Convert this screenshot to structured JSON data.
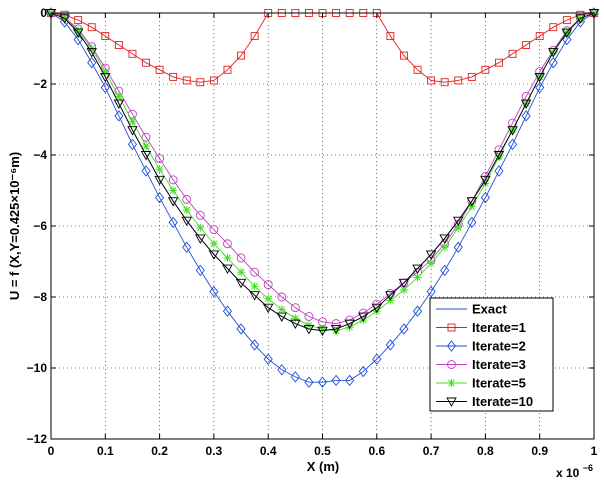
{
  "chart_data": {
    "type": "line",
    "xlabel": "X (m)",
    "ylabel": "U = f (X,Y=0.425×10⁻⁶m)",
    "x_multiplier_label": "x 10",
    "x_multiplier_exp": "−6",
    "xlim": [
      0,
      1
    ],
    "ylim": [
      -12,
      0
    ],
    "x_ticks": [
      0,
      0.1,
      0.2,
      0.3,
      0.4,
      0.5,
      0.6,
      0.7,
      0.8,
      0.9,
      1
    ],
    "x_tick_labels": [
      "0",
      "0.1",
      "0.2",
      "0.3",
      "0.4",
      "0.5",
      "0.6",
      "0.7",
      "0.8",
      "0.9",
      "1"
    ],
    "y_ticks": [
      0,
      -2,
      -4,
      -6,
      -8,
      -10,
      -12
    ],
    "y_tick_labels": [
      "0",
      "−2",
      "−4",
      "−6",
      "−8",
      "−10",
      "−12"
    ],
    "grid": true,
    "legend_position": "bottom-right",
    "x": [
      0,
      0.025,
      0.05,
      0.075,
      0.1,
      0.125,
      0.15,
      0.175,
      0.2,
      0.225,
      0.25,
      0.275,
      0.3,
      0.325,
      0.35,
      0.375,
      0.4,
      0.425,
      0.45,
      0.475,
      0.5,
      0.525,
      0.55,
      0.575,
      0.6,
      0.625,
      0.65,
      0.675,
      0.7,
      0.725,
      0.75,
      0.775,
      0.8,
      0.825,
      0.85,
      0.875,
      0.9,
      0.925,
      0.95,
      0.975,
      1
    ],
    "series": [
      {
        "name": "Exact",
        "color": "#1f4fd8",
        "marker": "none",
        "values": [
          0,
          -0.15,
          -0.55,
          -1.1,
          -1.8,
          -2.55,
          -3.3,
          -4.0,
          -4.7,
          -5.3,
          -5.85,
          -6.35,
          -6.8,
          -7.2,
          -7.6,
          -7.95,
          -8.3,
          -8.55,
          -8.75,
          -8.9,
          -8.95,
          -8.9,
          -8.75,
          -8.55,
          -8.3,
          -7.95,
          -7.6,
          -7.2,
          -6.8,
          -6.35,
          -5.85,
          -5.3,
          -4.7,
          -4.0,
          -3.3,
          -2.55,
          -1.8,
          -1.1,
          -0.55,
          -0.15,
          0
        ]
      },
      {
        "name": "Iterate=1",
        "color": "#e02020",
        "marker": "square",
        "values": [
          0,
          -0.05,
          -0.2,
          -0.4,
          -0.65,
          -0.9,
          -1.15,
          -1.4,
          -1.6,
          -1.8,
          -1.9,
          -1.95,
          -1.9,
          -1.6,
          -1.2,
          -0.65,
          0,
          0,
          0,
          0,
          0,
          0,
          0,
          0,
          0,
          -0.65,
          -1.2,
          -1.6,
          -1.9,
          -1.95,
          -1.9,
          -1.8,
          -1.6,
          -1.4,
          -1.15,
          -0.9,
          -0.65,
          -0.4,
          -0.2,
          -0.05,
          0
        ]
      },
      {
        "name": "Iterate=2",
        "color": "#1f4fd8",
        "marker": "diamond",
        "values": [
          0,
          -0.25,
          -0.75,
          -1.4,
          -2.1,
          -2.9,
          -3.7,
          -4.45,
          -5.2,
          -5.9,
          -6.6,
          -7.25,
          -7.85,
          -8.4,
          -8.9,
          -9.35,
          -9.75,
          -10.05,
          -10.25,
          -10.4,
          -10.4,
          -10.35,
          -10.35,
          -10.1,
          -9.75,
          -9.35,
          -8.9,
          -8.4,
          -7.85,
          -7.25,
          -6.6,
          -5.9,
          -5.2,
          -4.45,
          -3.7,
          -2.9,
          -2.1,
          -1.4,
          -0.75,
          -0.25,
          0
        ]
      },
      {
        "name": "Iterate=3",
        "color": "#c040c0",
        "marker": "circle",
        "values": [
          0,
          -0.12,
          -0.45,
          -0.95,
          -1.55,
          -2.2,
          -2.85,
          -3.5,
          -4.1,
          -4.7,
          -5.25,
          -5.7,
          -6.1,
          -6.5,
          -6.9,
          -7.3,
          -7.65,
          -8.0,
          -8.3,
          -8.55,
          -8.7,
          -8.75,
          -8.65,
          -8.45,
          -8.2,
          -7.9,
          -7.6,
          -7.3,
          -6.95,
          -6.5,
          -5.95,
          -5.3,
          -4.6,
          -3.85,
          -3.1,
          -2.35,
          -1.65,
          -1.05,
          -0.5,
          -0.15,
          0
        ]
      },
      {
        "name": "Iterate=5",
        "color": "#44dd22",
        "marker": "star",
        "values": [
          0,
          -0.13,
          -0.5,
          -1.0,
          -1.65,
          -2.35,
          -3.05,
          -3.75,
          -4.4,
          -5.0,
          -5.55,
          -6.05,
          -6.5,
          -6.9,
          -7.3,
          -7.7,
          -8.05,
          -8.35,
          -8.6,
          -8.8,
          -8.9,
          -8.95,
          -8.85,
          -8.65,
          -8.4,
          -8.1,
          -7.8,
          -7.45,
          -7.05,
          -6.6,
          -6.05,
          -5.45,
          -4.8,
          -4.05,
          -3.3,
          -2.55,
          -1.8,
          -1.1,
          -0.55,
          -0.15,
          0
        ]
      },
      {
        "name": "Iterate=10",
        "color": "#000000",
        "marker": "triangle-down",
        "values": [
          0,
          -0.15,
          -0.55,
          -1.1,
          -1.8,
          -2.55,
          -3.3,
          -4.0,
          -4.7,
          -5.3,
          -5.85,
          -6.35,
          -6.8,
          -7.2,
          -7.6,
          -7.95,
          -8.3,
          -8.55,
          -8.75,
          -8.9,
          -8.95,
          -8.9,
          -8.75,
          -8.55,
          -8.3,
          -7.95,
          -7.6,
          -7.2,
          -6.8,
          -6.35,
          -5.85,
          -5.3,
          -4.7,
          -4.0,
          -3.3,
          -2.55,
          -1.8,
          -1.1,
          -0.55,
          -0.15,
          0
        ]
      }
    ]
  }
}
